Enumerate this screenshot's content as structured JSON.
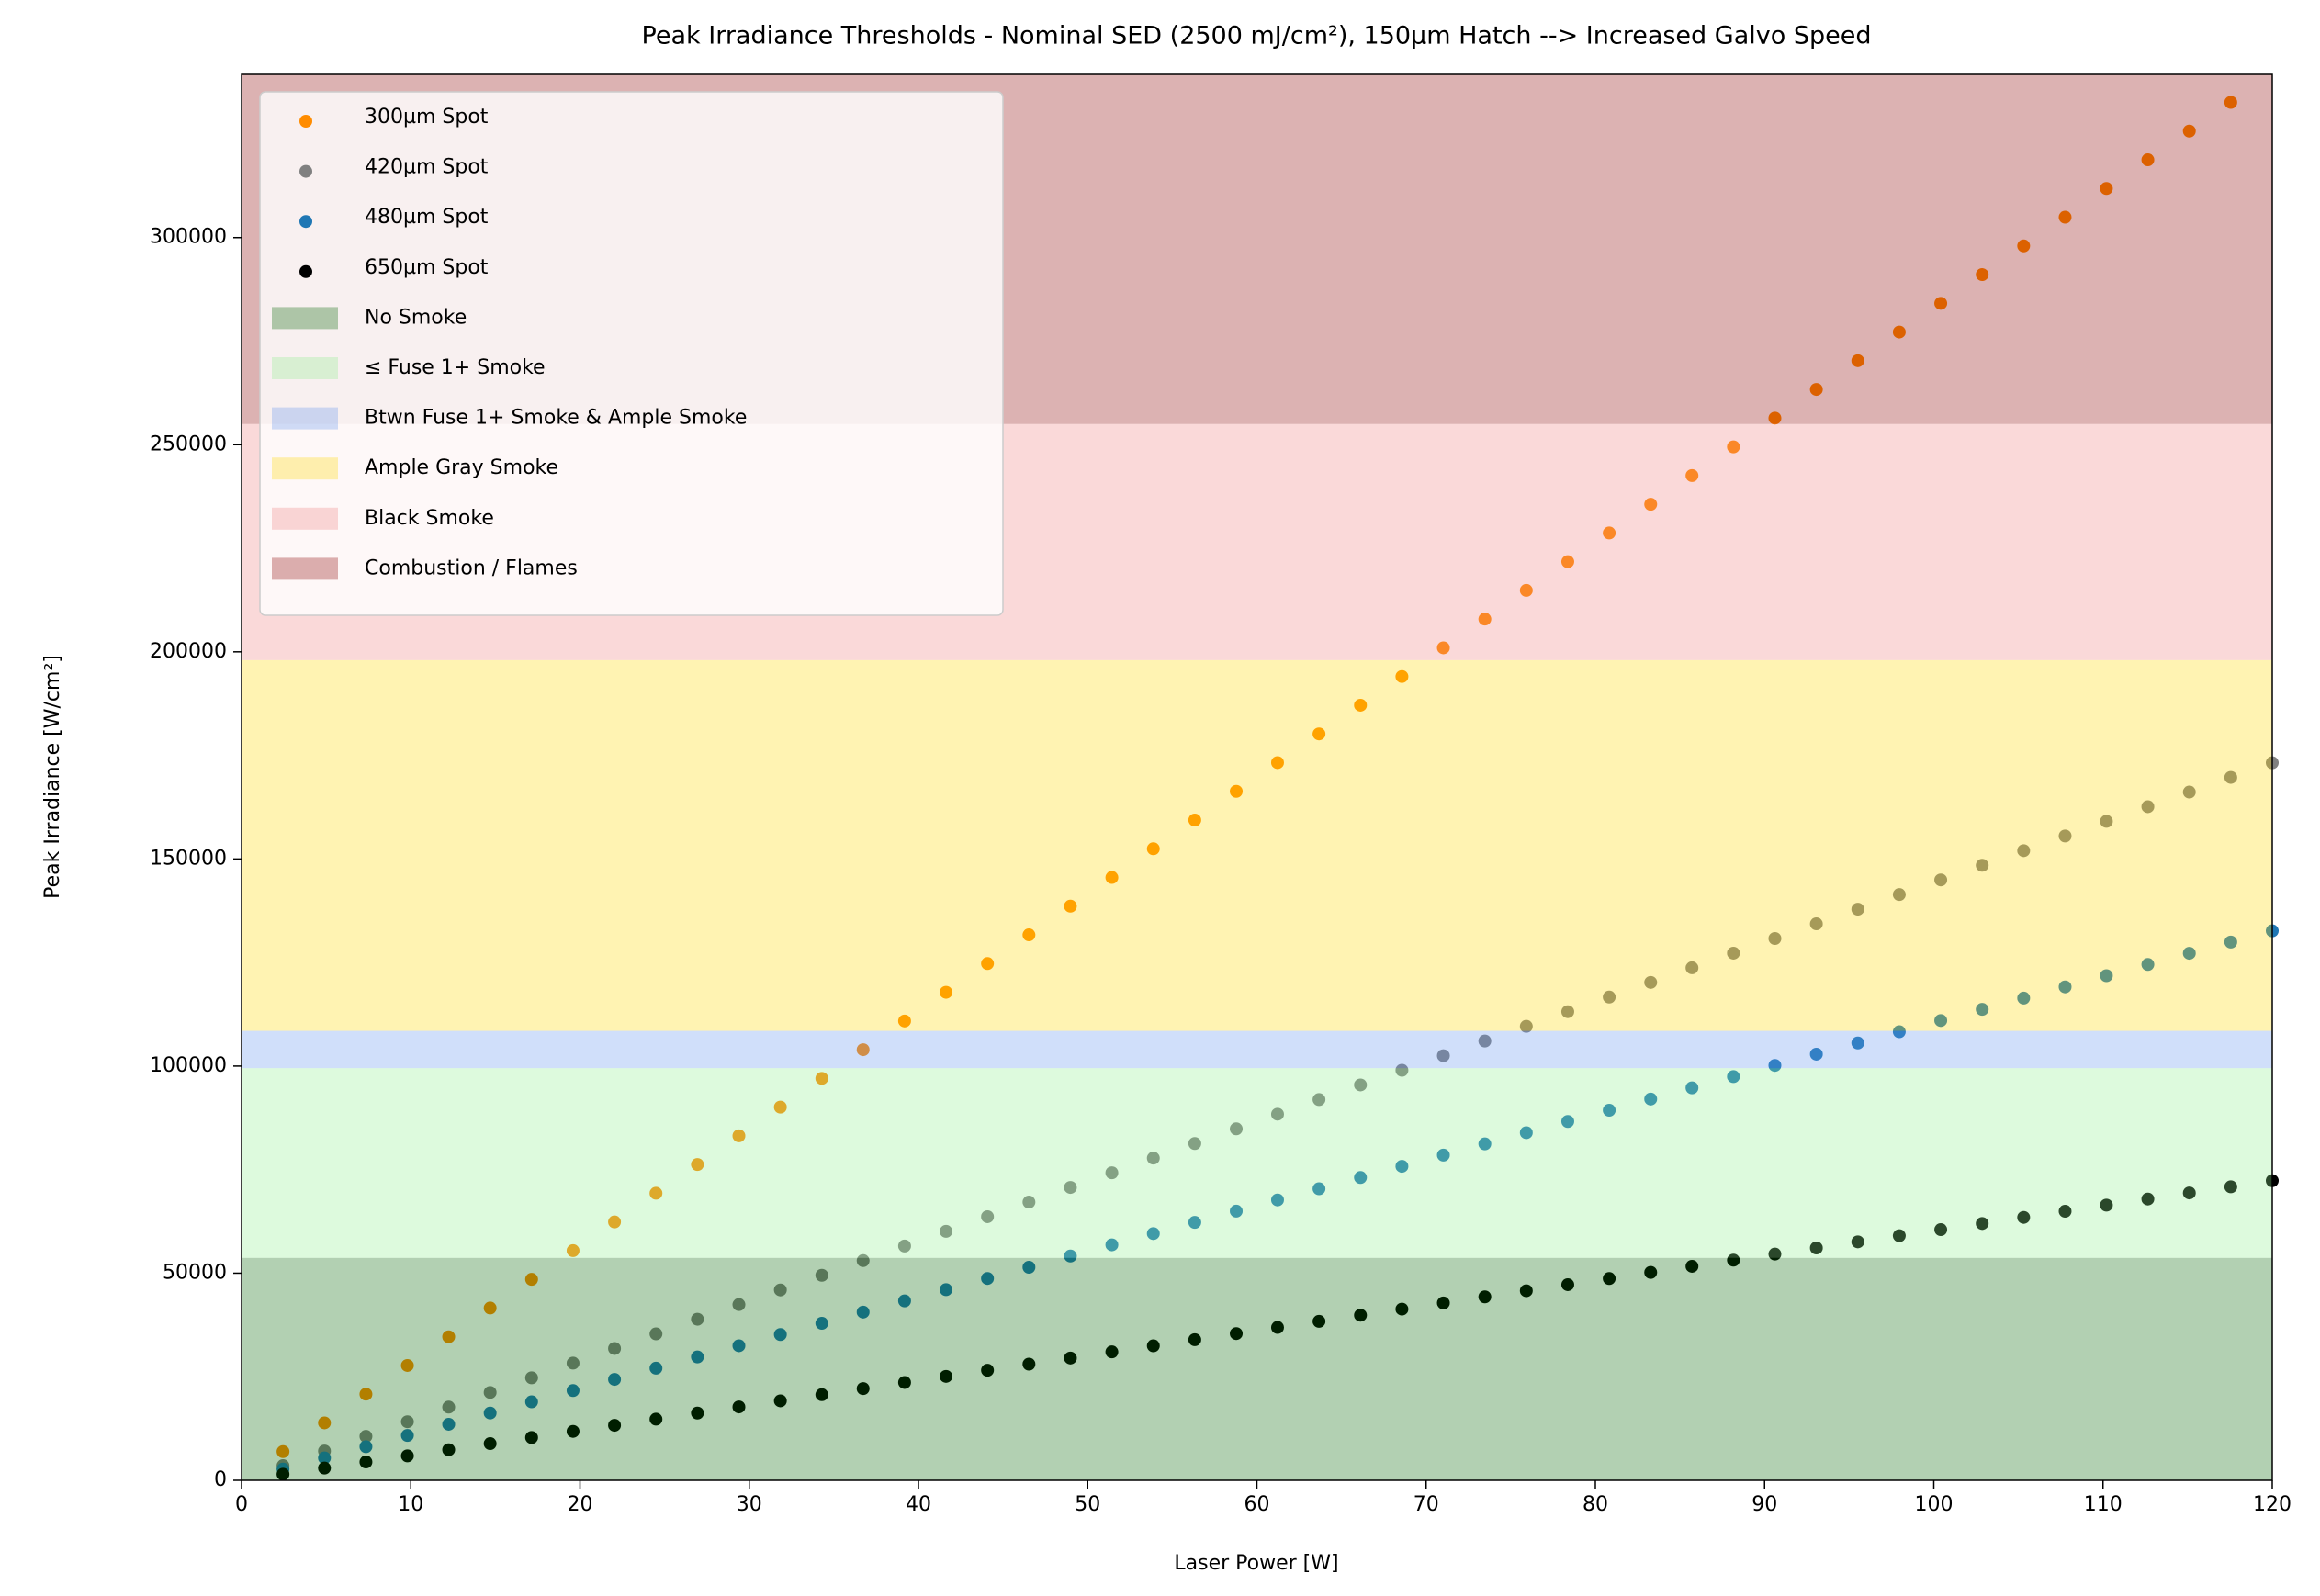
{
  "chart_data": {
    "type": "scatter",
    "title": "Peak Irradiance Thresholds - Nominal SED (2500 mJ/cm²), 150µm Hatch --> Increased Galvo Speed",
    "x_label": "Laser Power [W]",
    "y_label": "Peak Irradiance [W/cm²]",
    "x": [
      2.45,
      4.9,
      7.35,
      9.8,
      12.24,
      14.69,
      17.14,
      19.59,
      22.04,
      24.49,
      26.94,
      29.39,
      31.84,
      34.29,
      36.73,
      39.18,
      41.63,
      44.08,
      46.53,
      48.98,
      51.43,
      53.88,
      56.33,
      58.78,
      61.22,
      63.67,
      66.12,
      68.57,
      71.02,
      73.47,
      75.92,
      78.37,
      80.82,
      83.27,
      85.71,
      88.16,
      90.61,
      93.06,
      95.51,
      97.96,
      100.41,
      102.86,
      105.31,
      107.76,
      110.2,
      112.65,
      115.1,
      117.55,
      120
    ],
    "series": [
      {
        "name": "300µm Spot",
        "color": "#ff8c00",
        "values": [
          6930,
          13860,
          20790,
          27720,
          34650,
          41580,
          48510,
          55440,
          62370,
          69300,
          76230,
          83160,
          90090,
          97020,
          103950,
          110880,
          117810,
          124740,
          131670,
          138600,
          145530,
          152460,
          159390,
          166320,
          173250,
          180180,
          187110,
          194040,
          200970,
          207900,
          214830,
          221760,
          228690,
          235620,
          242550,
          249480,
          256410,
          263340,
          270270,
          277200,
          284130,
          291060,
          297990,
          304920,
          311850,
          318780,
          325710,
          332640,
          null
        ]
      },
      {
        "name": "420µm Spot",
        "color": "#808080",
        "values": [
          3535,
          7070,
          10605,
          14140,
          17675,
          21210,
          24745,
          28280,
          31815,
          35350,
          38885,
          42420,
          45955,
          49490,
          53025,
          56560,
          60095,
          63630,
          67165,
          70700,
          74235,
          77770,
          81305,
          84840,
          88375,
          91910,
          95445,
          98980,
          102515,
          106050,
          109585,
          113120,
          116655,
          120190,
          123725,
          127260,
          130795,
          134330,
          137865,
          141400,
          144935,
          148470,
          152005,
          155540,
          159075,
          162610,
          166145,
          169680,
          173215
        ]
      },
      {
        "name": "480µm Spot",
        "color": "#1f77b4",
        "values": [
          2707,
          5414,
          8121,
          10828,
          13535,
          16242,
          18949,
          21656,
          24363,
          27070,
          29777,
          32484,
          35191,
          37898,
          40605,
          43312,
          46019,
          48726,
          51433,
          54140,
          56847,
          59554,
          62261,
          64968,
          67675,
          70382,
          73089,
          75796,
          78503,
          81210,
          83917,
          86624,
          89331,
          92038,
          94745,
          97452,
          100159,
          102866,
          105573,
          108280,
          110987,
          113694,
          116401,
          119108,
          121815,
          124522,
          127229,
          129936,
          132643
        ]
      },
      {
        "name": "650µm Spot",
        "color": "#000000",
        "values": [
          1476,
          2952,
          4428,
          5904,
          7380,
          8856,
          10332,
          11808,
          13284,
          14760,
          16236,
          17712,
          19188,
          20664,
          22140,
          23616,
          25092,
          26568,
          28044,
          29520,
          30996,
          32472,
          33948,
          35424,
          36900,
          38376,
          39852,
          41328,
          42804,
          44280,
          45756,
          47232,
          48708,
          50184,
          51660,
          53136,
          54612,
          56088,
          57564,
          59040,
          60516,
          61992,
          63468,
          64944,
          66420,
          67896,
          69372,
          70848,
          72324
        ]
      }
    ],
    "bands": [
      {
        "name": "No Smoke",
        "color": "#006400",
        "range": [
          0,
          53700
        ]
      },
      {
        "name": "≤ Fuse 1+ Smoke",
        "color": "#90ee90",
        "range": [
          53700,
          99500
        ]
      },
      {
        "name": "Btwn Fuse 1+ Smoke & Ample Smoke",
        "color": "#6495ed",
        "range": [
          99500,
          108500
        ]
      },
      {
        "name": "Ample Gray Smoke",
        "color": "#ffd700",
        "range": [
          108500,
          198000
        ]
      },
      {
        "name": "Black Smoke",
        "color": "#f08080",
        "range": [
          198000,
          255000
        ]
      },
      {
        "name": "Combustion / Flames",
        "color": "#8b0000",
        "range": [
          255000,
          339400
        ]
      }
    ],
    "band_opacity": 0.3,
    "xlim": [
      0,
      120
    ],
    "ylim": [
      0,
      339400
    ],
    "xticks": [
      0,
      10,
      20,
      30,
      40,
      50,
      60,
      70,
      80,
      90,
      100,
      110,
      120
    ],
    "yticks": [
      0,
      50000,
      100000,
      150000,
      200000,
      250000,
      300000
    ],
    "legend": "upper left"
  }
}
